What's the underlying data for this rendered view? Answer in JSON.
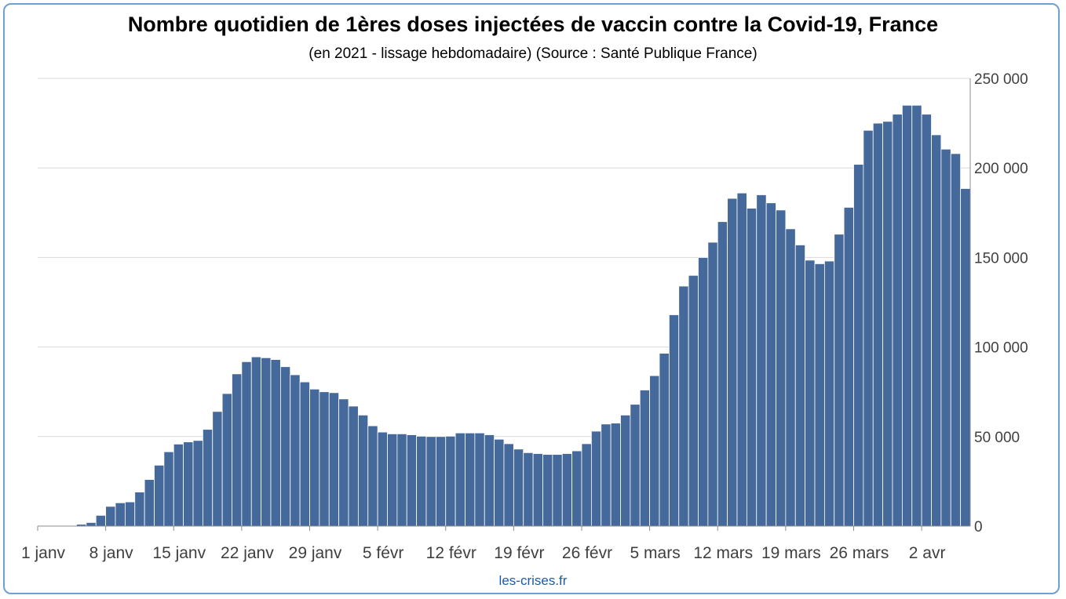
{
  "footer": "les-crises.fr",
  "chart_data": {
    "type": "bar",
    "title": "Nombre quotidien de 1ères doses injectées de vaccin contre la Covid-19, France",
    "subtitle": "(en 2021 - lissage hebdomadaire) (Source : Santé Publique France)",
    "xlabel": "",
    "ylabel": "",
    "ylim": [
      0,
      250000
    ],
    "yticks": [
      0,
      50000,
      100000,
      150000,
      200000,
      250000
    ],
    "ytick_labels": [
      "0",
      "50 000",
      "100 000",
      "150 000",
      "200 000",
      "250 000"
    ],
    "y_axis_side": "right",
    "grid": true,
    "xtick_labels": [
      "1 janv",
      "8 janv",
      "15 janv",
      "22 janv",
      "29 janv",
      "5 févr",
      "12 févr",
      "19 févr",
      "26 févr",
      "5 mars",
      "12 mars",
      "19 mars",
      "26 mars",
      "2 avr"
    ],
    "bar_color": "#44699a",
    "values": [
      0,
      0,
      0,
      0,
      1000,
      2000,
      6000,
      11000,
      13000,
      13500,
      19000,
      26000,
      34000,
      41500,
      45800,
      47000,
      47800,
      54000,
      64000,
      74000,
      85000,
      91800,
      94500,
      94000,
      93000,
      89000,
      84500,
      80500,
      76500,
      75000,
      74500,
      71000,
      67000,
      62000,
      56000,
      52500,
      51500,
      51500,
      51000,
      50200,
      50000,
      50000,
      50200,
      52000,
      52000,
      52000,
      51000,
      48500,
      46000,
      43000,
      41000,
      40500,
      40000,
      40000,
      40500,
      42000,
      46000,
      53000,
      57000,
      57500,
      62000,
      68000,
      76000,
      84000,
      96500,
      118000,
      134000,
      140000,
      150000,
      158500,
      170000,
      183000,
      186000,
      177500,
      185000,
      180500,
      176500,
      166000,
      157000,
      148500,
      146500,
      148000,
      163000,
      178000,
      202000,
      221000,
      225000,
      226000,
      230000,
      235000,
      235000,
      230000,
      218500,
      210500,
      208000,
      188500
    ]
  }
}
